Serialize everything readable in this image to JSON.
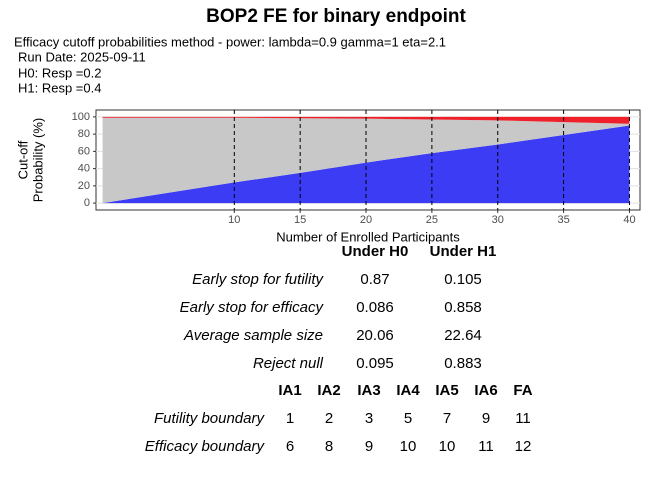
{
  "chart_data": {
    "type": "stacked-area",
    "title": "BOP2 FE for binary endpoint",
    "subtitle": [
      "Efficacy cutoff probabilities method - power: lambda=0.9 gamma=1 eta=2.1",
      "Run Date: 2025-09-11",
      "H0: Resp =0.2",
      "H1: Resp =0.4"
    ],
    "xlabel": "Number of Enrolled Participants",
    "ylabel": [
      "Cut-off",
      "Probability (%)"
    ],
    "x": [
      0,
      10,
      15,
      20,
      25,
      30,
      35,
      40
    ],
    "series": [
      {
        "color": "#3c3cf5",
        "values": [
          0,
          24,
          35,
          47,
          58,
          68,
          79,
          90
        ]
      },
      {
        "color": "#c8c8c8",
        "values": [
          99,
          75,
          63.5,
          51,
          39,
          28,
          15,
          2
        ]
      },
      {
        "color": "#f0202a",
        "values": [
          1,
          1,
          1.5,
          2,
          3,
          4,
          6,
          8
        ]
      }
    ],
    "xlim": [
      -0.5,
      40.8
    ],
    "ylim": [
      -8,
      108
    ],
    "xticks": [
      10,
      15,
      20,
      25,
      30,
      35,
      40
    ],
    "yticks": [
      0,
      20,
      40,
      60,
      80,
      100
    ],
    "grid": true
  },
  "table1": {
    "header": [
      "Under H0",
      "Under H1"
    ],
    "rows": [
      [
        "Early stop for futility",
        "0.87",
        "0.105"
      ],
      [
        "Early stop for efficacy",
        "0.086",
        "0.858"
      ],
      [
        "Average sample size",
        "20.06",
        "22.64"
      ],
      [
        "Reject null",
        "0.095",
        "0.883"
      ]
    ]
  },
  "table2": {
    "header": [
      "IA1",
      "IA2",
      "IA3",
      "IA4",
      "IA5",
      "IA6",
      "FA"
    ],
    "rows": [
      [
        "Futility boundary",
        "1",
        "2",
        "3",
        "5",
        "7",
        "9",
        "11"
      ],
      [
        "Efficacy boundary",
        "6",
        "8",
        "9",
        "10",
        "10",
        "11",
        "12"
      ]
    ]
  }
}
